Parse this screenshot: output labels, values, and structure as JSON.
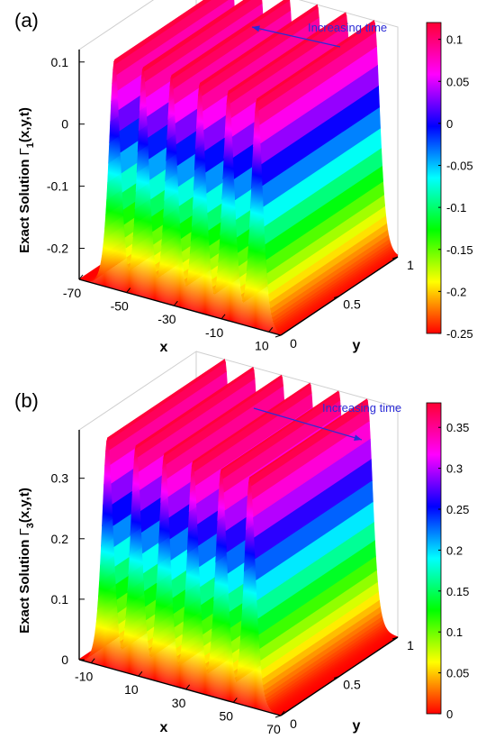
{
  "chart_data": [
    {
      "type": "surface",
      "panel_label": "(a)",
      "annotation": "Increasing time",
      "arrow_direction": "toward-back-left",
      "xlabel": "x",
      "ylabel": "y",
      "zlabel_prefix": "Exact Solution ",
      "zlabel_symbol": "Γ",
      "zlabel_sub": "1",
      "zlabel_suffix": "(x,y,t)",
      "xlim": [
        -70,
        15
      ],
      "ylim": [
        0,
        1
      ],
      "zlim": [
        -0.25,
        0.12
      ],
      "x_ticks": [
        "-70",
        "-50",
        "-30",
        "-10",
        "10"
      ],
      "x_tick_values": [
        -70,
        -50,
        -30,
        -10,
        10
      ],
      "y_ticks": [
        "0",
        "0.5",
        "1"
      ],
      "y_tick_values": [
        0,
        0.5,
        1
      ],
      "z_ticks": [
        "-0.2",
        "-0.1",
        "0",
        "0.1"
      ],
      "z_tick_values": [
        -0.2,
        -0.1,
        0,
        0.1
      ],
      "colorbar_ticks": [
        "0.1",
        "0.05",
        "0",
        "-0.05",
        "-0.1",
        "-0.15",
        "-0.2",
        "-0.25"
      ],
      "colorbar_tick_values": [
        0.1,
        0.05,
        0,
        -0.05,
        -0.1,
        -0.15,
        -0.2,
        -0.25
      ],
      "colorbar_range": [
        -0.25,
        0.12
      ],
      "wave_peak_x": [
        -55,
        -43,
        -31,
        -19,
        -7,
        5
      ],
      "wave_min": -0.25,
      "wave_max": 0.12,
      "colormap": "hsv"
    },
    {
      "type": "surface",
      "panel_label": "(b)",
      "annotation": "Increasing time",
      "arrow_direction": "toward-front-right",
      "xlabel": "x",
      "ylabel": "y",
      "zlabel_prefix": "Exact Solution ",
      "zlabel_symbol": "Γ",
      "zlabel_sub": "3",
      "zlabel_suffix": "(x,y,t)",
      "xlim": [
        -15,
        70
      ],
      "ylim": [
        0,
        1
      ],
      "zlim": [
        0,
        0.38
      ],
      "x_ticks": [
        "-10",
        "10",
        "30",
        "50",
        "70"
      ],
      "x_tick_values": [
        -10,
        10,
        30,
        50,
        70
      ],
      "y_ticks": [
        "0",
        "0.5",
        "1"
      ],
      "y_tick_values": [
        0,
        0.5,
        1
      ],
      "z_ticks": [
        "0",
        "0.1",
        "0.2",
        "0.3"
      ],
      "z_tick_values": [
        0,
        0.1,
        0.2,
        0.3
      ],
      "colorbar_ticks": [
        "0.35",
        "0.3",
        "0.25",
        "0.2",
        "0.15",
        "0.1",
        "0.05",
        "0"
      ],
      "colorbar_tick_values": [
        0.35,
        0.3,
        0.25,
        0.2,
        0.15,
        0.1,
        0.05,
        0
      ],
      "colorbar_range": [
        0,
        0.38
      ],
      "wave_peak_x": [
        -3,
        9,
        21,
        33,
        45,
        57
      ],
      "wave_min": 0,
      "wave_max": 0.38,
      "colormap": "hsv"
    }
  ]
}
